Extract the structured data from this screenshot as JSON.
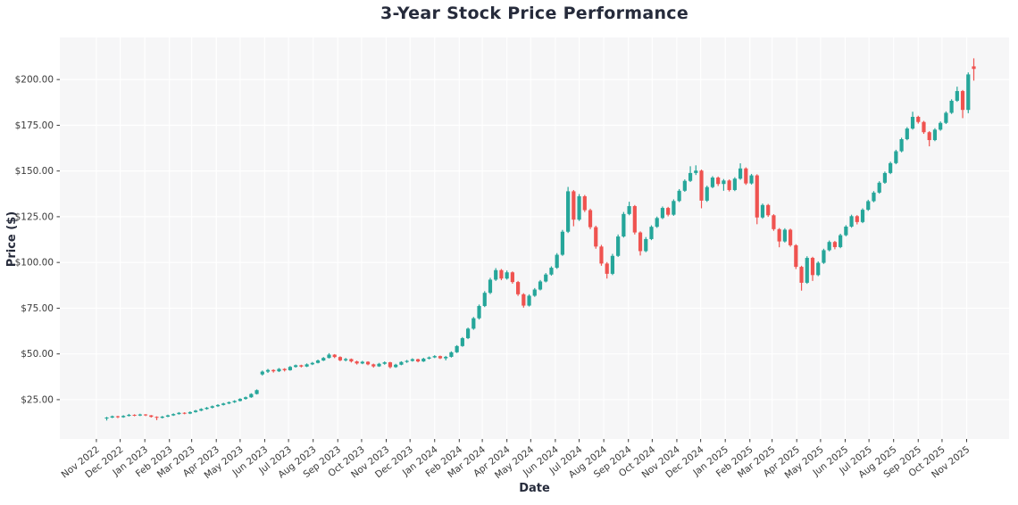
{
  "figure": {
    "background": "#ffffff"
  },
  "chart_data": {
    "type": "candlestick",
    "title": "3-Year Stock Price Performance",
    "xlabel": "Date",
    "ylabel": "Price ($)",
    "grid": true,
    "ylim": [
      3.5,
      223
    ],
    "colors": {
      "up": "#26a69a",
      "down": "#ef5350",
      "plot_bg": "#f6f6f7",
      "grid": "#ffffff",
      "tick_label": "#3a3a3a",
      "tick_mark": "#3a3a3a",
      "title": "#262b3b"
    },
    "y_ticks": [
      {
        "value": 25,
        "label": "$25.00"
      },
      {
        "value": 50,
        "label": "$50.00"
      },
      {
        "value": 75,
        "label": "$75.00"
      },
      {
        "value": 100,
        "label": "$100.00"
      },
      {
        "value": 125,
        "label": "$125.00"
      },
      {
        "value": 150,
        "label": "$150.00"
      },
      {
        "value": 175,
        "label": "$175.00"
      },
      {
        "value": 200,
        "label": "$200.00"
      }
    ],
    "x_ticks": [
      {
        "date": "2022-11-01",
        "label": "Nov 2022"
      },
      {
        "date": "2022-12-01",
        "label": "Dec 2022"
      },
      {
        "date": "2023-01-01",
        "label": "Jan 2023"
      },
      {
        "date": "2023-02-01",
        "label": "Feb 2023"
      },
      {
        "date": "2023-03-01",
        "label": "Mar 2023"
      },
      {
        "date": "2023-04-01",
        "label": "Apr 2023"
      },
      {
        "date": "2023-05-01",
        "label": "May 2023"
      },
      {
        "date": "2023-06-01",
        "label": "Jun 2023"
      },
      {
        "date": "2023-07-01",
        "label": "Jul 2023"
      },
      {
        "date": "2023-08-01",
        "label": "Aug 2023"
      },
      {
        "date": "2023-09-01",
        "label": "Sep 2023"
      },
      {
        "date": "2023-10-01",
        "label": "Oct 2023"
      },
      {
        "date": "2023-11-01",
        "label": "Nov 2023"
      },
      {
        "date": "2023-12-01",
        "label": "Dec 2023"
      },
      {
        "date": "2024-01-01",
        "label": "Jan 2024"
      },
      {
        "date": "2024-02-01",
        "label": "Feb 2024"
      },
      {
        "date": "2024-03-01",
        "label": "Mar 2024"
      },
      {
        "date": "2024-04-01",
        "label": "Apr 2024"
      },
      {
        "date": "2024-05-01",
        "label": "May 2024"
      },
      {
        "date": "2024-06-01",
        "label": "Jun 2024"
      },
      {
        "date": "2024-07-01",
        "label": "Jul 2024"
      },
      {
        "date": "2024-08-01",
        "label": "Aug 2024"
      },
      {
        "date": "2024-09-01",
        "label": "Sep 2024"
      },
      {
        "date": "2024-10-01",
        "label": "Oct 2024"
      },
      {
        "date": "2024-11-01",
        "label": "Nov 2024"
      },
      {
        "date": "2024-12-01",
        "label": "Dec 2024"
      },
      {
        "date": "2025-01-01",
        "label": "Jan 2025"
      },
      {
        "date": "2025-02-01",
        "label": "Feb 2025"
      },
      {
        "date": "2025-03-01",
        "label": "Mar 2025"
      },
      {
        "date": "2025-04-01",
        "label": "Apr 2025"
      },
      {
        "date": "2025-05-01",
        "label": "May 2025"
      },
      {
        "date": "2025-06-01",
        "label": "Jun 2025"
      },
      {
        "date": "2025-07-01",
        "label": "Jul 2025"
      },
      {
        "date": "2025-08-01",
        "label": "Aug 2025"
      },
      {
        "date": "2025-09-01",
        "label": "Sep 2025"
      },
      {
        "date": "2025-10-01",
        "label": "Oct 2025"
      },
      {
        "date": "2025-11-01",
        "label": "Nov 2025"
      }
    ],
    "ohlc_columns": [
      "date",
      "open",
      "high",
      "low",
      "close"
    ],
    "ohlc": [
      [
        "2022-11-14",
        14.8,
        15.6,
        13.6,
        15.2
      ],
      [
        "2022-11-21",
        15.2,
        16.3,
        14.9,
        15.9
      ],
      [
        "2022-11-28",
        15.9,
        16.2,
        14.9,
        15.4
      ],
      [
        "2022-12-05",
        15.4,
        16.5,
        15.1,
        16.1
      ],
      [
        "2022-12-12",
        16.1,
        17.2,
        15.8,
        16.7
      ],
      [
        "2022-12-19",
        16.7,
        17.0,
        15.9,
        16.3
      ],
      [
        "2022-12-26",
        16.3,
        17.3,
        16.0,
        16.9
      ],
      [
        "2023-01-02",
        16.9,
        17.1,
        16.0,
        16.4
      ],
      [
        "2023-01-09",
        16.4,
        16.6,
        15.2,
        15.6
      ],
      [
        "2023-01-16",
        15.6,
        15.9,
        13.8,
        15.1
      ],
      [
        "2023-01-23",
        15.1,
        16.1,
        14.7,
        15.7
      ],
      [
        "2023-01-30",
        15.7,
        16.8,
        15.4,
        16.4
      ],
      [
        "2023-02-06",
        16.4,
        17.5,
        16.1,
        17.1
      ],
      [
        "2023-02-13",
        17.1,
        18.2,
        16.8,
        17.8
      ],
      [
        "2023-02-20",
        17.8,
        18.1,
        17.0,
        17.4
      ],
      [
        "2023-02-27",
        17.4,
        18.6,
        17.1,
        18.2
      ],
      [
        "2023-03-06",
        18.2,
        19.4,
        17.9,
        19.0
      ],
      [
        "2023-03-13",
        19.0,
        20.3,
        18.7,
        19.9
      ],
      [
        "2023-03-20",
        19.9,
        21.0,
        19.5,
        20.6
      ],
      [
        "2023-03-27",
        20.6,
        21.8,
        20.2,
        21.4
      ],
      [
        "2023-04-03",
        21.4,
        22.5,
        21.0,
        22.1
      ],
      [
        "2023-04-10",
        22.1,
        23.3,
        21.8,
        22.9
      ],
      [
        "2023-04-17",
        22.9,
        24.0,
        22.5,
        23.6
      ],
      [
        "2023-04-24",
        23.6,
        24.7,
        23.2,
        24.3
      ],
      [
        "2023-05-01",
        24.3,
        25.8,
        24.0,
        25.4
      ],
      [
        "2023-05-08",
        25.4,
        26.7,
        25.0,
        26.3
      ],
      [
        "2023-05-15",
        26.3,
        28.5,
        26.0,
        28.1
      ],
      [
        "2023-05-22",
        28.1,
        30.6,
        27.8,
        30.2
      ],
      [
        "2023-05-29",
        38.8,
        40.9,
        38.2,
        40.3
      ],
      [
        "2023-06-05",
        40.3,
        41.8,
        39.6,
        41.2
      ],
      [
        "2023-06-12",
        41.2,
        41.6,
        39.8,
        40.5
      ],
      [
        "2023-06-19",
        40.5,
        42.3,
        40.1,
        41.8
      ],
      [
        "2023-06-26",
        41.8,
        42.2,
        40.4,
        41.1
      ],
      [
        "2023-07-03",
        41.1,
        43.4,
        40.8,
        42.9
      ],
      [
        "2023-07-10",
        42.9,
        44.2,
        42.5,
        43.8
      ],
      [
        "2023-07-17",
        43.8,
        44.1,
        42.6,
        43.1
      ],
      [
        "2023-07-24",
        43.1,
        44.8,
        42.8,
        44.3
      ],
      [
        "2023-07-31",
        44.3,
        45.6,
        43.9,
        45.1
      ],
      [
        "2023-08-07",
        45.1,
        46.9,
        44.8,
        46.4
      ],
      [
        "2023-08-14",
        46.4,
        48.3,
        46.1,
        47.8
      ],
      [
        "2023-08-21",
        47.8,
        50.4,
        47.5,
        49.6
      ],
      [
        "2023-08-28",
        49.6,
        49.9,
        47.7,
        48.3
      ],
      [
        "2023-09-04",
        48.3,
        48.7,
        46.0,
        46.5
      ],
      [
        "2023-09-11",
        46.5,
        47.8,
        45.9,
        47.2
      ],
      [
        "2023-09-18",
        47.2,
        47.5,
        45.3,
        45.9
      ],
      [
        "2023-09-25",
        45.9,
        46.3,
        44.2,
        44.8
      ],
      [
        "2023-10-02",
        44.8,
        46.2,
        44.4,
        45.7
      ],
      [
        "2023-10-09",
        45.7,
        46.0,
        43.8,
        44.3
      ],
      [
        "2023-10-16",
        44.3,
        44.7,
        42.5,
        43.2
      ],
      [
        "2023-10-23",
        43.2,
        45.1,
        42.9,
        44.6
      ],
      [
        "2023-10-30",
        44.6,
        45.9,
        44.1,
        45.4
      ],
      [
        "2023-11-06",
        45.4,
        45.7,
        42.1,
        42.8
      ],
      [
        "2023-11-13",
        42.8,
        44.6,
        42.4,
        44.1
      ],
      [
        "2023-11-20",
        44.1,
        46.0,
        43.8,
        45.6
      ],
      [
        "2023-11-27",
        45.6,
        46.7,
        45.1,
        46.2
      ],
      [
        "2023-12-04",
        46.2,
        47.6,
        45.8,
        47.1
      ],
      [
        "2023-12-11",
        47.1,
        47.4,
        45.4,
        45.9
      ],
      [
        "2023-12-18",
        45.9,
        47.9,
        45.6,
        47.4
      ],
      [
        "2023-12-25",
        47.4,
        48.6,
        47.0,
        48.1
      ],
      [
        "2024-01-01",
        48.1,
        49.3,
        47.7,
        48.8
      ],
      [
        "2024-01-08",
        48.8,
        49.1,
        47.2,
        47.6
      ],
      [
        "2024-01-15",
        47.6,
        48.9,
        46.5,
        48.4
      ],
      [
        "2024-01-22",
        48.4,
        51.4,
        48.0,
        50.9
      ],
      [
        "2024-01-29",
        50.9,
        54.8,
        50.5,
        54.3
      ],
      [
        "2024-02-05",
        54.3,
        59.2,
        53.9,
        58.6
      ],
      [
        "2024-02-12",
        58.6,
        64.4,
        58.1,
        63.8
      ],
      [
        "2024-02-19",
        63.8,
        70.2,
        63.2,
        69.5
      ],
      [
        "2024-02-26",
        69.5,
        77.0,
        68.8,
        76.2
      ],
      [
        "2024-03-04",
        76.2,
        84.3,
        75.6,
        83.4
      ],
      [
        "2024-03-11",
        83.4,
        91.6,
        82.7,
        90.6
      ],
      [
        "2024-03-18",
        90.6,
        96.9,
        89.9,
        95.8
      ],
      [
        "2024-03-25",
        95.8,
        96.4,
        90.3,
        91.2
      ],
      [
        "2024-04-01",
        91.2,
        95.6,
        90.6,
        94.6
      ],
      [
        "2024-04-08",
        94.6,
        95.1,
        88.4,
        89.3
      ],
      [
        "2024-04-15",
        89.3,
        89.9,
        81.7,
        82.6
      ],
      [
        "2024-04-22",
        82.6,
        83.2,
        75.3,
        76.4
      ],
      [
        "2024-04-29",
        76.4,
        82.6,
        75.9,
        81.8
      ],
      [
        "2024-05-06",
        81.8,
        86.0,
        81.2,
        85.2
      ],
      [
        "2024-05-13",
        85.2,
        90.4,
        84.7,
        89.6
      ],
      [
        "2024-05-20",
        89.6,
        94.2,
        89.1,
        93.4
      ],
      [
        "2024-05-27",
        93.4,
        97.9,
        92.8,
        97.1
      ],
      [
        "2024-06-03",
        97.1,
        105.1,
        96.5,
        104.2
      ],
      [
        "2024-06-10",
        104.2,
        117.8,
        103.6,
        116.8
      ],
      [
        "2024-06-17",
        116.8,
        141.3,
        116.1,
        138.9
      ],
      [
        "2024-06-24",
        138.9,
        139.6,
        119.8,
        123.4
      ],
      [
        "2024-07-01",
        123.4,
        137.4,
        122.7,
        136.2
      ],
      [
        "2024-07-08",
        136.2,
        136.9,
        127.6,
        128.6
      ],
      [
        "2024-07-15",
        128.6,
        129.4,
        118.2,
        119.3
      ],
      [
        "2024-07-22",
        119.3,
        120.1,
        107.5,
        108.7
      ],
      [
        "2024-07-29",
        108.7,
        109.6,
        98.2,
        99.4
      ],
      [
        "2024-08-05",
        99.4,
        100.2,
        91.2,
        93.8
      ],
      [
        "2024-08-12",
        93.8,
        104.7,
        93.1,
        103.6
      ],
      [
        "2024-08-19",
        103.6,
        115.3,
        103.0,
        114.2
      ],
      [
        "2024-08-26",
        114.2,
        127.6,
        113.6,
        126.5
      ],
      [
        "2024-09-02",
        126.5,
        133.2,
        125.8,
        130.8
      ],
      [
        "2024-09-09",
        130.8,
        131.4,
        115.3,
        116.4
      ],
      [
        "2024-09-16",
        116.4,
        117.0,
        103.8,
        106.2
      ],
      [
        "2024-09-23",
        106.2,
        113.9,
        105.6,
        112.8
      ],
      [
        "2024-09-30",
        112.8,
        120.3,
        112.2,
        119.5
      ],
      [
        "2024-10-07",
        119.5,
        125.1,
        118.9,
        124.3
      ],
      [
        "2024-10-14",
        124.3,
        130.6,
        123.7,
        129.8
      ],
      [
        "2024-10-21",
        129.8,
        130.4,
        125.2,
        126.1
      ],
      [
        "2024-10-28",
        126.1,
        134.5,
        125.5,
        133.6
      ],
      [
        "2024-11-04",
        133.6,
        140.1,
        133.0,
        139.2
      ],
      [
        "2024-11-11",
        139.2,
        145.4,
        138.6,
        144.6
      ],
      [
        "2024-11-18",
        144.6,
        152.6,
        144.0,
        148.9
      ],
      [
        "2024-11-25",
        148.9,
        153.1,
        147.8,
        150.2
      ],
      [
        "2024-12-02",
        150.2,
        150.8,
        129.6,
        133.8
      ],
      [
        "2024-12-09",
        133.8,
        142.0,
        133.1,
        141.2
      ],
      [
        "2024-12-16",
        141.2,
        147.2,
        140.6,
        146.4
      ],
      [
        "2024-12-23",
        146.4,
        147.0,
        141.8,
        142.9
      ],
      [
        "2024-12-30",
        142.9,
        145.6,
        139.2,
        144.8
      ],
      [
        "2025-01-06",
        144.8,
        145.4,
        138.8,
        139.6
      ],
      [
        "2025-01-13",
        139.6,
        146.6,
        139.0,
        145.8
      ],
      [
        "2025-01-20",
        145.8,
        154.2,
        145.2,
        151.4
      ],
      [
        "2025-01-27",
        151.4,
        152.0,
        142.4,
        143.2
      ],
      [
        "2025-02-03",
        143.2,
        148.4,
        142.6,
        147.6
      ],
      [
        "2025-02-10",
        147.6,
        148.2,
        120.9,
        124.6
      ],
      [
        "2025-02-17",
        124.6,
        132.2,
        123.9,
        131.4
      ],
      [
        "2025-02-24",
        131.4,
        132.0,
        124.9,
        125.8
      ],
      [
        "2025-03-03",
        125.8,
        126.4,
        117.3,
        118.2
      ],
      [
        "2025-03-10",
        118.2,
        118.8,
        108.3,
        111.5
      ],
      [
        "2025-03-17",
        111.5,
        118.7,
        110.9,
        117.9
      ],
      [
        "2025-03-24",
        117.9,
        118.5,
        108.6,
        109.4
      ],
      [
        "2025-03-31",
        109.4,
        110.0,
        96.4,
        97.6
      ],
      [
        "2025-04-07",
        97.6,
        98.2,
        84.6,
        88.9
      ],
      [
        "2025-04-14",
        88.9,
        103.4,
        88.3,
        102.5
      ],
      [
        "2025-04-21",
        102.5,
        103.1,
        89.9,
        93.1
      ],
      [
        "2025-04-28",
        93.1,
        100.6,
        92.5,
        99.8
      ],
      [
        "2025-05-05",
        99.8,
        107.5,
        99.2,
        106.7
      ],
      [
        "2025-05-12",
        106.7,
        112.0,
        106.1,
        111.2
      ],
      [
        "2025-05-19",
        111.2,
        111.8,
        107.2,
        108.4
      ],
      [
        "2025-05-26",
        108.4,
        115.7,
        107.8,
        114.9
      ],
      [
        "2025-06-02",
        114.9,
        120.4,
        114.3,
        119.6
      ],
      [
        "2025-06-09",
        119.6,
        126.1,
        119.0,
        125.3
      ],
      [
        "2025-06-16",
        125.3,
        125.9,
        120.8,
        122.1
      ],
      [
        "2025-06-23",
        122.1,
        129.6,
        121.5,
        128.8
      ],
      [
        "2025-06-30",
        128.8,
        134.3,
        128.2,
        133.5
      ],
      [
        "2025-07-07",
        133.5,
        139.0,
        132.9,
        138.2
      ],
      [
        "2025-07-14",
        138.2,
        144.4,
        137.6,
        143.6
      ],
      [
        "2025-07-21",
        143.6,
        149.7,
        143.0,
        148.9
      ],
      [
        "2025-07-28",
        148.9,
        155.1,
        148.3,
        154.3
      ],
      [
        "2025-08-04",
        154.3,
        161.6,
        153.7,
        160.8
      ],
      [
        "2025-08-11",
        160.8,
        168.2,
        160.2,
        167.4
      ],
      [
        "2025-08-18",
        167.4,
        174.0,
        166.8,
        173.2
      ],
      [
        "2025-08-25",
        173.2,
        182.4,
        172.6,
        179.6
      ],
      [
        "2025-09-01",
        179.6,
        180.2,
        175.9,
        176.8
      ],
      [
        "2025-09-08",
        176.8,
        177.4,
        170.3,
        171.2
      ],
      [
        "2025-09-15",
        171.2,
        171.8,
        163.5,
        166.9
      ],
      [
        "2025-09-22",
        166.9,
        173.4,
        166.3,
        172.6
      ],
      [
        "2025-09-29",
        172.6,
        177.1,
        172.0,
        176.3
      ],
      [
        "2025-10-06",
        176.3,
        182.6,
        175.7,
        181.8
      ],
      [
        "2025-10-13",
        181.8,
        189.2,
        181.2,
        188.4
      ],
      [
        "2025-10-20",
        188.4,
        196.1,
        187.8,
        193.7
      ],
      [
        "2025-10-27",
        193.7,
        194.3,
        178.9,
        183.4
      ],
      [
        "2025-11-03",
        183.4,
        203.9,
        181.6,
        202.8
      ],
      [
        "2025-11-10",
        207.2,
        211.6,
        199.4,
        205.8
      ]
    ]
  }
}
